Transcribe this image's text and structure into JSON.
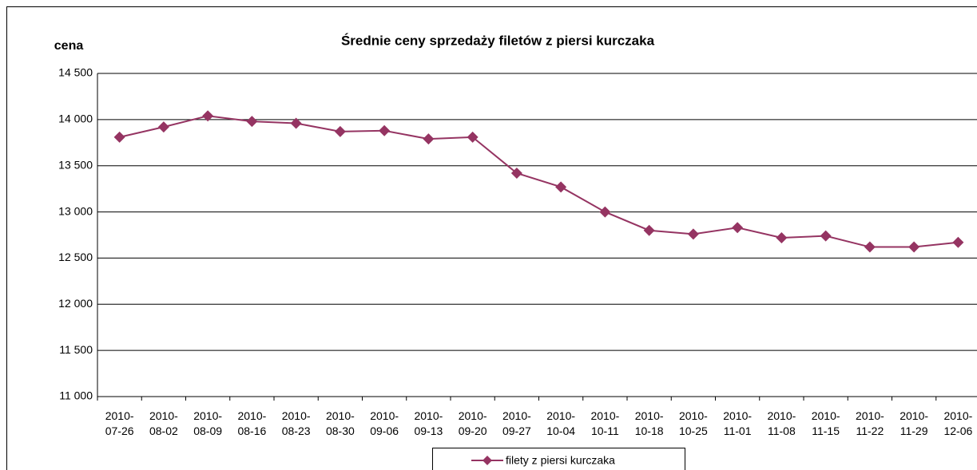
{
  "chart_data": {
    "type": "line",
    "title": "Średnie ceny sprzedaży filetów z piersi kurczaka",
    "y_label": "cena",
    "categories": [
      "2010-07-26",
      "2010-08-02",
      "2010-08-09",
      "2010-08-16",
      "2010-08-23",
      "2010-08-30",
      "2010-09-06",
      "2010-09-13",
      "2010-09-20",
      "2010-09-27",
      "2010-10-04",
      "2010-10-11",
      "2010-10-18",
      "2010-10-25",
      "2010-11-01",
      "2010-11-08",
      "2010-11-15",
      "2010-11-22",
      "2010-11-29",
      "2010-12-06"
    ],
    "series": [
      {
        "name": "filety z piersi kurczaka",
        "color": "#953462",
        "values": [
          13810,
          13920,
          14040,
          13980,
          13960,
          13870,
          13880,
          13790,
          13810,
          13420,
          13270,
          13000,
          12800,
          12760,
          12830,
          12720,
          12740,
          12620,
          12620,
          12670
        ]
      }
    ],
    "ylim": [
      11000,
      14500
    ],
    "yticks": [
      {
        "value": 11000,
        "label": "11 000"
      },
      {
        "value": 11500,
        "label": "11 500"
      },
      {
        "value": 12000,
        "label": "12 000"
      },
      {
        "value": 12500,
        "label": "12 500"
      },
      {
        "value": 13000,
        "label": "13 000"
      },
      {
        "value": 13500,
        "label": "13 500"
      },
      {
        "value": 14000,
        "label": "14 000"
      },
      {
        "value": 14500,
        "label": "14 500"
      }
    ],
    "grid": true,
    "legend": "bottom"
  }
}
